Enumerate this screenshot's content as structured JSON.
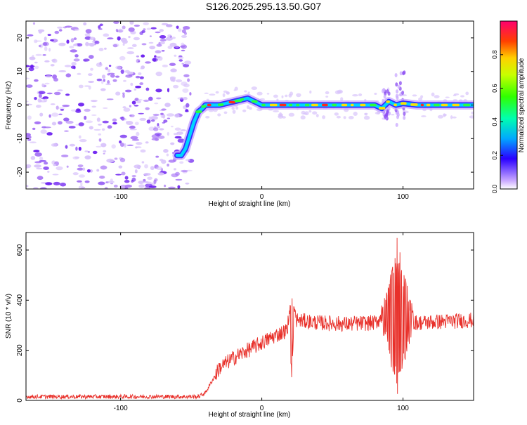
{
  "title": "S126.2025.295.13.50.G07",
  "colors": {
    "snr_line": "#e8302a",
    "ridge": "#3a2bff",
    "scatter": "#7b2fe0",
    "axis": "#000000"
  },
  "chart_data": [
    {
      "type": "heatmap",
      "name": "spectrogram",
      "xlabel": "Height of straight line (km)",
      "ylabel": "Frequency (Hz)",
      "xlim": [
        -167,
        150
      ],
      "ylim": [
        -25,
        25
      ],
      "xticks": [
        -100,
        0,
        100
      ],
      "yticks": [
        -20,
        -10,
        0,
        10,
        20
      ],
      "ridge": {
        "x": [
          -60,
          -57,
          -54,
          -51,
          -48,
          -45,
          -42,
          -40,
          -35,
          -30,
          -25,
          -20,
          -15,
          -10,
          -5,
          0,
          10,
          20,
          40,
          60,
          80,
          85,
          90,
          95,
          100,
          110,
          120,
          130,
          140,
          150
        ],
        "y": [
          -15,
          -15,
          -13,
          -9,
          -5,
          -2,
          -1,
          0,
          0,
          0,
          0.5,
          1,
          1.5,
          2,
          1,
          0,
          0,
          0,
          0,
          0,
          0,
          -1,
          1,
          0,
          0.5,
          0,
          0,
          0,
          0,
          0
        ]
      },
      "colorbar": {
        "label": "Normalized spectral amplitude",
        "ticks": [
          "0.0",
          "0.2",
          "0.4",
          "0.6",
          "0.8"
        ],
        "range": [
          0,
          1
        ]
      }
    },
    {
      "type": "line",
      "name": "snr",
      "xlabel": "Height of straight line (km)",
      "ylabel": "SNR (10 * v/v)",
      "xlim": [
        -167,
        150
      ],
      "ylim": [
        0,
        670
      ],
      "xticks": [
        -100,
        0,
        100
      ],
      "yticks": [
        0,
        200,
        400,
        600
      ],
      "envelope": {
        "x": [
          -167,
          -120,
          -80,
          -45,
          -40,
          -35,
          -30,
          -20,
          -10,
          0,
          10,
          18,
          20,
          22,
          25,
          40,
          60,
          80,
          85,
          90,
          95,
          100,
          105,
          110,
          130,
          150
        ],
        "y": [
          15,
          15,
          15,
          15,
          30,
          80,
          130,
          170,
          200,
          230,
          260,
          280,
          310,
          340,
          320,
          310,
          305,
          310,
          330,
          320,
          300,
          310,
          320,
          310,
          315,
          320
        ]
      },
      "noise_amplitude": 12,
      "bursts": [
        {
          "x_center": 21,
          "half_width": 3,
          "min": 60,
          "max": 430
        },
        {
          "x_center": 96,
          "half_width": 12,
          "min": 15,
          "max": 670
        }
      ]
    }
  ]
}
